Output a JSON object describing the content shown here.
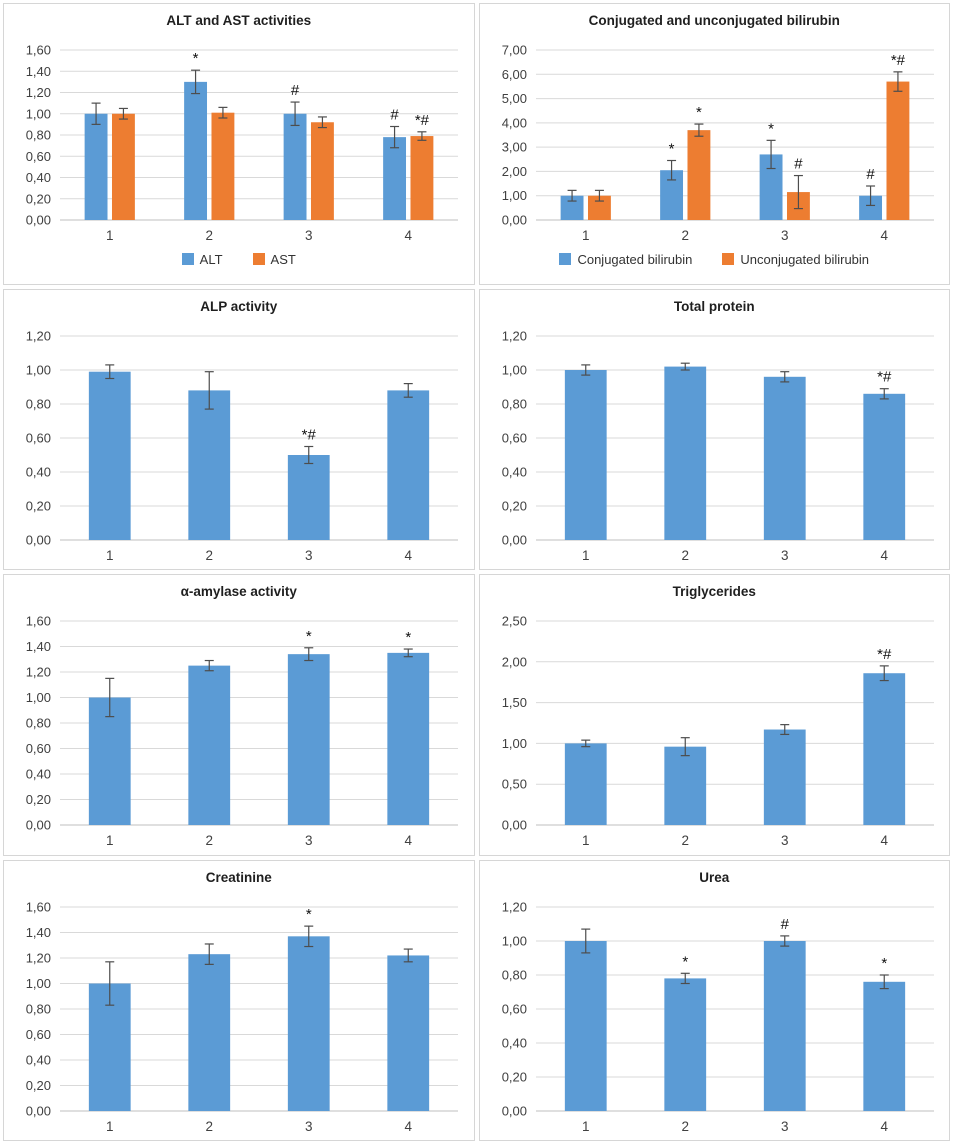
{
  "figure": {
    "description_colors": {
      "series_blue": "#5B9BD5",
      "series_orange": "#ED7D31",
      "gridline": "#D9D9D9",
      "axis_line": "#BFBFBF",
      "error_bar": "#4d4d4d",
      "tick_text": "#404040",
      "annotation_text": "#111111",
      "panel_border": "#D6D6D6"
    },
    "decimal_separator": ","
  },
  "chart_data": [
    {
      "id": "alt-ast",
      "type": "bar",
      "title": "ALT and AST activities",
      "categories": [
        "1",
        "2",
        "3",
        "4"
      ],
      "ylim": [
        0,
        1.6
      ],
      "ytick_step": 0.2,
      "grid": true,
      "legend_position": "bottom",
      "series": [
        {
          "name": "ALT",
          "color_key": "series_blue",
          "values": [
            1.0,
            1.3,
            1.0,
            0.78
          ],
          "errors": [
            0.1,
            0.11,
            0.11,
            0.1
          ],
          "annotations": [
            "",
            "*",
            "#",
            "#"
          ]
        },
        {
          "name": "AST",
          "color_key": "series_orange",
          "values": [
            1.0,
            1.01,
            0.92,
            0.79
          ],
          "errors": [
            0.05,
            0.05,
            0.05,
            0.04
          ],
          "annotations": [
            "",
            "",
            "",
            "*#"
          ]
        }
      ]
    },
    {
      "id": "bilirubin",
      "type": "bar",
      "title": "Conjugated and unconjugated bilirubin",
      "categories": [
        "1",
        "2",
        "3",
        "4"
      ],
      "ylim": [
        0,
        7.0
      ],
      "ytick_step": 1.0,
      "grid": true,
      "legend_position": "bottom",
      "series": [
        {
          "name": "Conjugated bilirubin",
          "color_key": "series_blue",
          "values": [
            1.0,
            2.05,
            2.7,
            1.0
          ],
          "errors": [
            0.22,
            0.4,
            0.58,
            0.4
          ],
          "annotations": [
            "",
            "*",
            "*",
            "#"
          ]
        },
        {
          "name": "Unconjugated bilirubin",
          "color_key": "series_orange",
          "values": [
            1.0,
            3.7,
            1.15,
            5.7
          ],
          "errors": [
            0.22,
            0.25,
            0.68,
            0.4
          ],
          "annotations": [
            "",
            "*",
            "#",
            "*#"
          ]
        }
      ]
    },
    {
      "id": "alp",
      "type": "bar",
      "title": "ALP activity",
      "categories": [
        "1",
        "2",
        "3",
        "4"
      ],
      "ylim": [
        0,
        1.2
      ],
      "ytick_step": 0.2,
      "grid": true,
      "legend_position": "none",
      "series": [
        {
          "name": "",
          "color_key": "series_blue",
          "values": [
            0.99,
            0.88,
            0.5,
            0.88
          ],
          "errors": [
            0.04,
            0.11,
            0.05,
            0.04
          ],
          "annotations": [
            "",
            "",
            "*#",
            ""
          ]
        }
      ]
    },
    {
      "id": "total-protein",
      "type": "bar",
      "title": "Total protein",
      "categories": [
        "1",
        "2",
        "3",
        "4"
      ],
      "ylim": [
        0,
        1.2
      ],
      "ytick_step": 0.2,
      "grid": true,
      "legend_position": "none",
      "series": [
        {
          "name": "",
          "color_key": "series_blue",
          "values": [
            1.0,
            1.02,
            0.96,
            0.86
          ],
          "errors": [
            0.03,
            0.02,
            0.03,
            0.03
          ],
          "annotations": [
            "",
            "",
            "",
            "*#"
          ]
        }
      ]
    },
    {
      "id": "amylase",
      "type": "bar",
      "title": "α-amylase activity",
      "categories": [
        "1",
        "2",
        "3",
        "4"
      ],
      "ylim": [
        0,
        1.6
      ],
      "ytick_step": 0.2,
      "grid": true,
      "legend_position": "none",
      "series": [
        {
          "name": "",
          "color_key": "series_blue",
          "values": [
            1.0,
            1.25,
            1.34,
            1.35
          ],
          "errors": [
            0.15,
            0.04,
            0.05,
            0.03
          ],
          "annotations": [
            "",
            "",
            "*",
            "*"
          ]
        }
      ]
    },
    {
      "id": "triglycerides",
      "type": "bar",
      "title": "Triglycerides",
      "categories": [
        "1",
        "2",
        "3",
        "4"
      ],
      "ylim": [
        0,
        2.5
      ],
      "ytick_step": 0.5,
      "grid": true,
      "legend_position": "none",
      "series": [
        {
          "name": "",
          "color_key": "series_blue",
          "values": [
            1.0,
            0.96,
            1.17,
            1.86
          ],
          "errors": [
            0.04,
            0.11,
            0.06,
            0.09
          ],
          "annotations": [
            "",
            "",
            "",
            "*#"
          ]
        }
      ]
    },
    {
      "id": "creatinine",
      "type": "bar",
      "title": "Creatinine",
      "categories": [
        "1",
        "2",
        "3",
        "4"
      ],
      "ylim": [
        0,
        1.6
      ],
      "ytick_step": 0.2,
      "grid": true,
      "legend_position": "none",
      "series": [
        {
          "name": "",
          "color_key": "series_blue",
          "values": [
            1.0,
            1.23,
            1.37,
            1.22
          ],
          "errors": [
            0.17,
            0.08,
            0.08,
            0.05
          ],
          "annotations": [
            "",
            "",
            "*",
            ""
          ]
        }
      ]
    },
    {
      "id": "urea",
      "type": "bar",
      "title": "Urea",
      "categories": [
        "1",
        "2",
        "3",
        "4"
      ],
      "ylim": [
        0,
        1.2
      ],
      "ytick_step": 0.2,
      "grid": true,
      "legend_position": "none",
      "series": [
        {
          "name": "",
          "color_key": "series_blue",
          "values": [
            1.0,
            0.78,
            1.0,
            0.76
          ],
          "errors": [
            0.07,
            0.03,
            0.03,
            0.04
          ],
          "annotations": [
            "",
            "*",
            "#",
            "*"
          ]
        }
      ]
    }
  ]
}
